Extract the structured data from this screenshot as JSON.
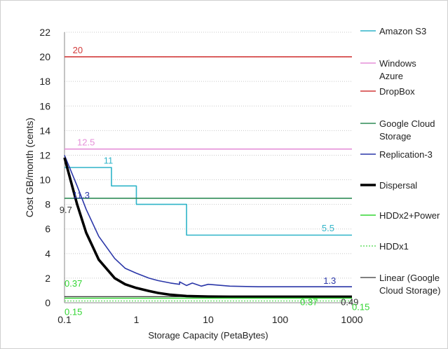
{
  "chart_data": {
    "type": "line",
    "title": "",
    "xlabel": "Storage Capacity (PetaBytes)",
    "ylabel": "Cost GB/month (cents)",
    "xscale": "log",
    "xlim": [
      0.1,
      1000
    ],
    "ylim": [
      0,
      22
    ],
    "x_ticks": [
      0.1,
      1,
      10,
      100,
      1000
    ],
    "x_tick_labels": [
      "0.1",
      "1",
      "10",
      "100",
      "1000"
    ],
    "y_ticks": [
      0,
      2,
      4,
      6,
      8,
      10,
      12,
      14,
      16,
      18,
      20,
      22
    ],
    "y_tick_labels": [
      "0",
      "2",
      "4",
      "6",
      "8",
      "10",
      "12",
      "14",
      "16",
      "18",
      "20",
      "22"
    ],
    "grid": "horizontal dotted",
    "legend_position": "right",
    "series": [
      {
        "name": "Amazon S3",
        "color": "#2fb4c8",
        "width": 1.6,
        "style": "step",
        "x": [
          0.1,
          0.45,
          0.45,
          1,
          1,
          5,
          5,
          1000
        ],
        "y": [
          11,
          11,
          9.5,
          9.5,
          8,
          8,
          5.5,
          5.5
        ]
      },
      {
        "name": "Windows Azure",
        "color": "#e58fd8",
        "width": 1.6,
        "style": "solid",
        "x": [
          0.1,
          1000
        ],
        "y": [
          12.5,
          12.5
        ]
      },
      {
        "name": "DropBox",
        "color": "#d23a3a",
        "width": 1.6,
        "style": "solid",
        "x": [
          0.1,
          1000
        ],
        "y": [
          20,
          20
        ]
      },
      {
        "name": "Google Cloud Storage",
        "color": "#2e8b57",
        "width": 1.6,
        "style": "solid",
        "x": [
          0.1,
          1000
        ],
        "y": [
          8.5,
          8.5
        ]
      },
      {
        "name": "Replication-3",
        "color": "#2a36a8",
        "width": 1.6,
        "style": "solid",
        "x": [
          0.1,
          0.15,
          0.2,
          0.3,
          0.5,
          0.7,
          1,
          1.5,
          2,
          3,
          4,
          4,
          5,
          6,
          8,
          10,
          20,
          50,
          100,
          1000
        ],
        "y": [
          12,
          9.5,
          7.6,
          5.4,
          3.6,
          2.8,
          2.4,
          2.0,
          1.8,
          1.6,
          1.5,
          1.7,
          1.4,
          1.6,
          1.35,
          1.5,
          1.35,
          1.3,
          1.3,
          1.3
        ]
      },
      {
        "name": "Dispersal",
        "color": "#000000",
        "width": 3.6,
        "style": "solid",
        "x": [
          0.1,
          0.15,
          0.2,
          0.3,
          0.5,
          0.7,
          1,
          1.5,
          2,
          3,
          5,
          10,
          20,
          100,
          1000
        ],
        "y": [
          11.8,
          8.0,
          5.7,
          3.5,
          2.0,
          1.5,
          1.2,
          0.95,
          0.8,
          0.65,
          0.55,
          0.5,
          0.49,
          0.49,
          0.49
        ]
      },
      {
        "name": "HDDx2+Power",
        "color": "#33d633",
        "width": 1.4,
        "style": "solid",
        "x": [
          0.1,
          1000
        ],
        "y": [
          0.37,
          0.37
        ]
      },
      {
        "name": "HDDx1",
        "color": "#66dd66",
        "width": 1.4,
        "style": "dotted",
        "x": [
          0.1,
          1000
        ],
        "y": [
          0.15,
          0.15
        ]
      },
      {
        "name": "Linear (Google Cloud Storage)",
        "color": "#000000",
        "width": 1,
        "style": "solid",
        "x": [
          0.1,
          1000
        ],
        "y": [
          0.5,
          0.5
        ]
      }
    ],
    "annotations": [
      {
        "text": "20",
        "x": 0.13,
        "y": 20.3,
        "color": "#d23a3a"
      },
      {
        "text": "12.5",
        "x": 0.15,
        "y": 12.8,
        "color": "#e58fd8"
      },
      {
        "text": "11",
        "x": 0.35,
        "y": 11.3,
        "color": "#2fb4c8"
      },
      {
        "text": "11.3",
        "x": 0.13,
        "y": 8.5,
        "color": "#2a36a8"
      },
      {
        "text": "9.7",
        "x": 0.085,
        "y": 7.3,
        "color": "#333333"
      },
      {
        "text": "5.5",
        "x": 380,
        "y": 5.8,
        "color": "#2fb4c8"
      },
      {
        "text": "1.3",
        "x": 400,
        "y": 1.55,
        "color": "#2a36a8"
      },
      {
        "text": "0.37",
        "x": 0.1,
        "y": 1.3,
        "color": "#33d633"
      },
      {
        "text": "0.37",
        "x": 190,
        "y": -0.2,
        "color": "#33d633"
      },
      {
        "text": "0.49",
        "x": 700,
        "y": -0.2,
        "color": "#333333"
      },
      {
        "text": "0.15",
        "x": 0.1,
        "y": -1.0,
        "color": "#33d633"
      },
      {
        "text": "0.15",
        "x": 1000,
        "y": -0.6,
        "color": "#33d633"
      }
    ],
    "legend": [
      {
        "label": "Amazon S3",
        "lines": [
          "Amazon S3"
        ],
        "color": "#2fb4c8",
        "style": "solid",
        "width": 1.6
      },
      {
        "label": "Windows Azure",
        "lines": [
          "Windows",
          "Azure"
        ],
        "color": "#e58fd8",
        "style": "solid",
        "width": 1.6
      },
      {
        "label": "DropBox",
        "lines": [
          "DropBox"
        ],
        "color": "#d23a3a",
        "style": "solid",
        "width": 1.6
      },
      {
        "label": "Google Cloud Storage",
        "lines": [
          "Google Cloud",
          "Storage"
        ],
        "color": "#2e8b57",
        "style": "solid",
        "width": 1.6
      },
      {
        "label": "Replication-3",
        "lines": [
          "Replication-3"
        ],
        "color": "#2a36a8",
        "style": "solid",
        "width": 1.6
      },
      {
        "label": "Dispersal",
        "lines": [
          "Dispersal"
        ],
        "color": "#000000",
        "style": "solid",
        "width": 3.6
      },
      {
        "label": "HDDx2+Power",
        "lines": [
          "HDDx2+Power"
        ],
        "color": "#33d633",
        "style": "solid",
        "width": 1.4
      },
      {
        "label": "HDDx1",
        "lines": [
          "HDDx1"
        ],
        "color": "#66dd66",
        "style": "dotted",
        "width": 1.4
      },
      {
        "label": "Linear (Google Cloud Storage)",
        "lines": [
          "Linear (Google",
          "Cloud Storage)"
        ],
        "color": "#000000",
        "style": "solid",
        "width": 1
      }
    ]
  }
}
